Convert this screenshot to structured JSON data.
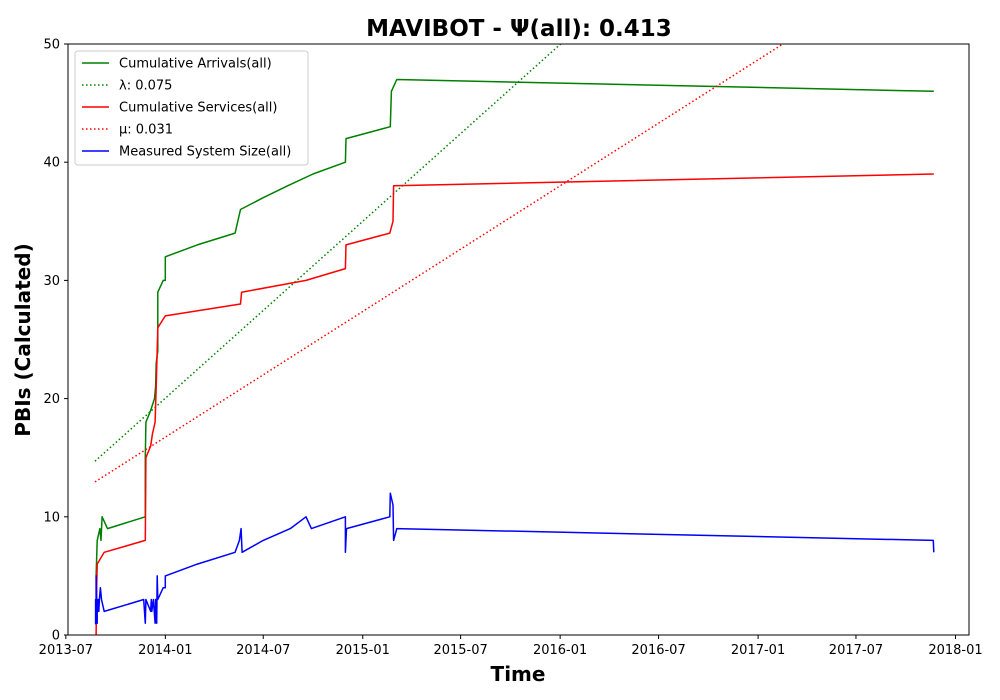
{
  "chart_data": {
    "type": "line",
    "title": "MAVIBOT -  Ψ(all): 0.413",
    "xlabel": "Time",
    "ylabel": "PBIs (Calculated)",
    "xlim": [
      "2013-07-05",
      "2018-01-26"
    ],
    "ylim": [
      0,
      50
    ],
    "x_ticks": [
      "2013-07-01",
      "2014-01-01",
      "2014-07-01",
      "2015-01-01",
      "2015-07-01",
      "2016-01-01",
      "2016-07-01",
      "2017-01-01",
      "2017-07-01",
      "2018-01-01"
    ],
    "x_tick_labels": [
      "2013-07",
      "2014-01",
      "2014-07",
      "2015-01",
      "2015-07",
      "2016-01",
      "2016-07",
      "2017-01",
      "2017-07",
      "2018-01"
    ],
    "y_ticks": [
      0,
      10,
      20,
      30,
      40,
      50
    ],
    "legend_position": "top-left",
    "grid": false,
    "series": [
      {
        "name": "Cumulative Arrivals(all)",
        "style": "solid",
        "color": "#008000",
        "points": [
          [
            "2013-08-26",
            5
          ],
          [
            "2013-08-28",
            8
          ],
          [
            "2013-09-02",
            9
          ],
          [
            "2013-09-04",
            8
          ],
          [
            "2013-09-06",
            10
          ],
          [
            "2013-09-16",
            9
          ],
          [
            "2013-11-25",
            10
          ],
          [
            "2013-11-25",
            15
          ],
          [
            "2013-11-26",
            18
          ],
          [
            "2013-12-05",
            19
          ],
          [
            "2013-12-12",
            20
          ],
          [
            "2013-12-14",
            21
          ],
          [
            "2013-12-15",
            23
          ],
          [
            "2013-12-18",
            24
          ],
          [
            "2013-12-18",
            29
          ],
          [
            "2013-12-28",
            30
          ],
          [
            "2014-01-01",
            30
          ],
          [
            "2014-01-01",
            32
          ],
          [
            "2014-03-01",
            33
          ],
          [
            "2014-05-10",
            34
          ],
          [
            "2014-05-20",
            36
          ],
          [
            "2014-07-01",
            37
          ],
          [
            "2014-08-15",
            38
          ],
          [
            "2014-10-01",
            39
          ],
          [
            "2014-11-30",
            40
          ],
          [
            "2014-12-01",
            42
          ],
          [
            "2015-02-21",
            43
          ],
          [
            "2015-02-23",
            46
          ],
          [
            "2015-03-05",
            47
          ],
          [
            "2017-11-22",
            46
          ]
        ]
      },
      {
        "name": "λ: 0.075",
        "style": "dotted",
        "color": "#008000",
        "points": [
          [
            "2013-08-24",
            14.7
          ],
          [
            "2016-01-14",
            50.5
          ]
        ]
      },
      {
        "name": "Cumulative Services(all)",
        "style": "solid",
        "color": "#ff0000",
        "points": [
          [
            "2013-08-26",
            0
          ],
          [
            "2013-08-27",
            4
          ],
          [
            "2013-08-28",
            6
          ],
          [
            "2013-09-10",
            7
          ],
          [
            "2013-11-25",
            8
          ],
          [
            "2013-11-26",
            15
          ],
          [
            "2013-12-05",
            16
          ],
          [
            "2013-12-08",
            17
          ],
          [
            "2013-12-13",
            18
          ],
          [
            "2013-12-15",
            21
          ],
          [
            "2013-12-18",
            26
          ],
          [
            "2014-01-01",
            27
          ],
          [
            "2014-05-20",
            28
          ],
          [
            "2014-05-22",
            29
          ],
          [
            "2014-09-18",
            30
          ],
          [
            "2014-11-30",
            31
          ],
          [
            "2014-12-01",
            33
          ],
          [
            "2015-02-20",
            34
          ],
          [
            "2015-02-26",
            35
          ],
          [
            "2015-02-27",
            38
          ],
          [
            "2017-11-22",
            39
          ]
        ]
      },
      {
        "name": "μ: 0.031",
        "style": "dotted",
        "color": "#ff0000",
        "points": [
          [
            "2013-08-24",
            12.95
          ],
          [
            "2017-03-05",
            50.5
          ]
        ]
      },
      {
        "name": "Measured System Size(all)",
        "style": "solid",
        "color": "#0000ff",
        "points": [
          [
            "2013-08-25",
            0.9
          ],
          [
            "2013-08-25",
            3
          ],
          [
            "2013-08-26",
            1
          ],
          [
            "2013-08-26",
            5
          ],
          [
            "2013-08-27",
            3
          ],
          [
            "2013-08-28",
            1
          ],
          [
            "2013-08-28",
            3
          ],
          [
            "2013-08-29",
            2
          ],
          [
            "2013-08-30",
            3
          ],
          [
            "2013-08-31",
            2
          ],
          [
            "2013-09-01",
            3
          ],
          [
            "2013-09-03",
            4
          ],
          [
            "2013-09-05",
            3
          ],
          [
            "2013-09-10",
            2
          ],
          [
            "2013-11-22",
            3
          ],
          [
            "2013-11-25",
            1
          ],
          [
            "2013-11-26",
            3
          ],
          [
            "2013-12-05",
            2
          ],
          [
            "2013-12-06",
            3
          ],
          [
            "2013-12-07",
            2
          ],
          [
            "2013-12-10",
            3
          ],
          [
            "2013-12-13",
            1
          ],
          [
            "2013-12-14",
            3
          ],
          [
            "2013-12-16",
            1
          ],
          [
            "2013-12-17",
            5
          ],
          [
            "2013-12-18",
            3
          ],
          [
            "2013-12-28",
            4
          ],
          [
            "2014-01-01",
            4
          ],
          [
            "2014-01-01",
            5
          ],
          [
            "2014-03-01",
            6
          ],
          [
            "2014-05-10",
            7
          ],
          [
            "2014-05-18",
            8
          ],
          [
            "2014-05-21",
            9
          ],
          [
            "2014-05-23",
            7
          ],
          [
            "2014-07-01",
            8
          ],
          [
            "2014-08-20",
            9
          ],
          [
            "2014-09-18",
            10
          ],
          [
            "2014-09-28",
            9
          ],
          [
            "2014-11-30",
            10
          ],
          [
            "2014-11-30",
            7
          ],
          [
            "2014-12-02",
            9
          ],
          [
            "2015-02-20",
            10
          ],
          [
            "2015-02-21",
            12
          ],
          [
            "2015-02-26",
            11
          ],
          [
            "2015-02-27",
            8
          ],
          [
            "2015-03-05",
            9
          ],
          [
            "2017-11-21",
            8
          ],
          [
            "2017-11-22",
            7
          ]
        ]
      }
    ]
  }
}
